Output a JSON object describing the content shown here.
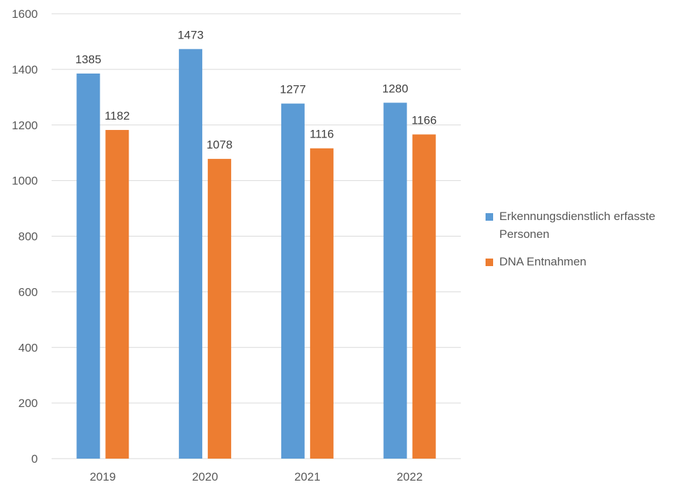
{
  "chart_data": {
    "type": "bar",
    "categories": [
      "2019",
      "2020",
      "2021",
      "2022"
    ],
    "series": [
      {
        "name": "Erkennungsdienstlich erfasste Personen",
        "values": [
          1385,
          1473,
          1277,
          1280
        ],
        "color": "#5b9bd5"
      },
      {
        "name": "DNA Entnahmen",
        "values": [
          1182,
          1078,
          1116,
          1166
        ],
        "color": "#ed7d31"
      }
    ],
    "ylim": [
      0,
      1600
    ],
    "yticks": [
      "0",
      "200",
      "400",
      "600",
      "800",
      "1000",
      "1200",
      "1400",
      "1600"
    ],
    "grid": true,
    "legend_position": "right",
    "data_labels": true,
    "title": "",
    "xlabel": "",
    "ylabel": ""
  }
}
